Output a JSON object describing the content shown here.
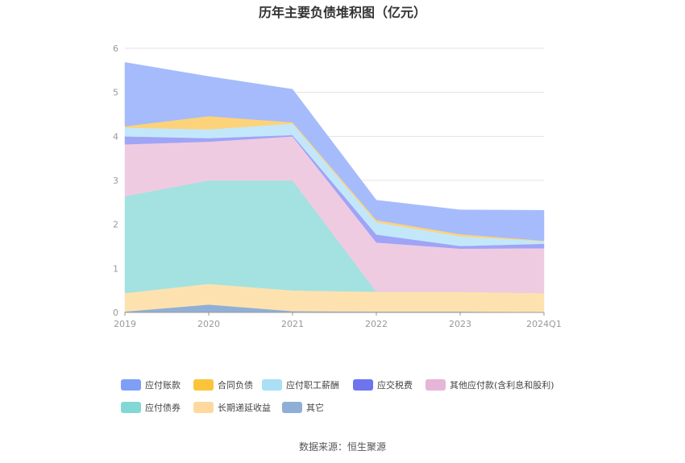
{
  "chart_data": {
    "type": "area",
    "title": "历年主要负债堆积图（亿元）",
    "x": [
      "2019",
      "2020",
      "2021",
      "2022",
      "2023",
      "2024Q1"
    ],
    "y_ticks": [
      "0",
      "1",
      "2",
      "3",
      "4",
      "5",
      "6"
    ],
    "ylim": [
      0,
      6
    ],
    "grid": true,
    "legend_position": "bottom",
    "series": [
      {
        "name": "其它",
        "color": "#8fafd6",
        "values": [
          0.02,
          0.18,
          0.03,
          0.02,
          0.02,
          0.01
        ]
      },
      {
        "name": "长期递延收益",
        "color": "#fde2b0",
        "values": [
          0.42,
          0.47,
          0.47,
          0.45,
          0.45,
          0.43
        ]
      },
      {
        "name": "应付债券",
        "color": "#a3e2e0",
        "values": [
          2.2,
          2.35,
          2.5,
          0.0,
          0.0,
          0.0
        ]
      },
      {
        "name": "其他应付款(含利息和股利)",
        "color": "#efcbe2",
        "values": [
          1.18,
          0.88,
          1.0,
          1.12,
          0.98,
          1.02
        ]
      },
      {
        "name": "应交税费",
        "color": "#9fa4f6",
        "values": [
          0.18,
          0.08,
          0.03,
          0.18,
          0.06,
          0.1
        ]
      },
      {
        "name": "应付职工薪酬",
        "color": "#c3e7fa",
        "values": [
          0.2,
          0.2,
          0.26,
          0.28,
          0.22,
          0.06
        ]
      },
      {
        "name": "合同负债",
        "color": "#fdd37a",
        "values": [
          0.03,
          0.3,
          0.03,
          0.05,
          0.05,
          0.01
        ]
      },
      {
        "name": "应付账款",
        "color": "#a5bbfb",
        "values": [
          1.45,
          0.9,
          0.75,
          0.45,
          0.55,
          0.69
        ]
      }
    ]
  },
  "legend": [
    {
      "name": "应付账款",
      "color": "#7f9ff7"
    },
    {
      "name": "合同负债",
      "color": "#fbc43b"
    },
    {
      "name": "应付职工薪酬",
      "color": "#a9dff7"
    },
    {
      "name": "应交税费",
      "color": "#6f74ee"
    },
    {
      "name": "其他应付款(含利息和股利)",
      "color": "#e7b5d7"
    },
    {
      "name": "应付债券",
      "color": "#82d8d4"
    },
    {
      "name": "长期递延收益",
      "color": "#fdd9a0"
    },
    {
      "name": "其它",
      "color": "#8fafd6"
    }
  ],
  "source": "数据来源：恒生聚源"
}
